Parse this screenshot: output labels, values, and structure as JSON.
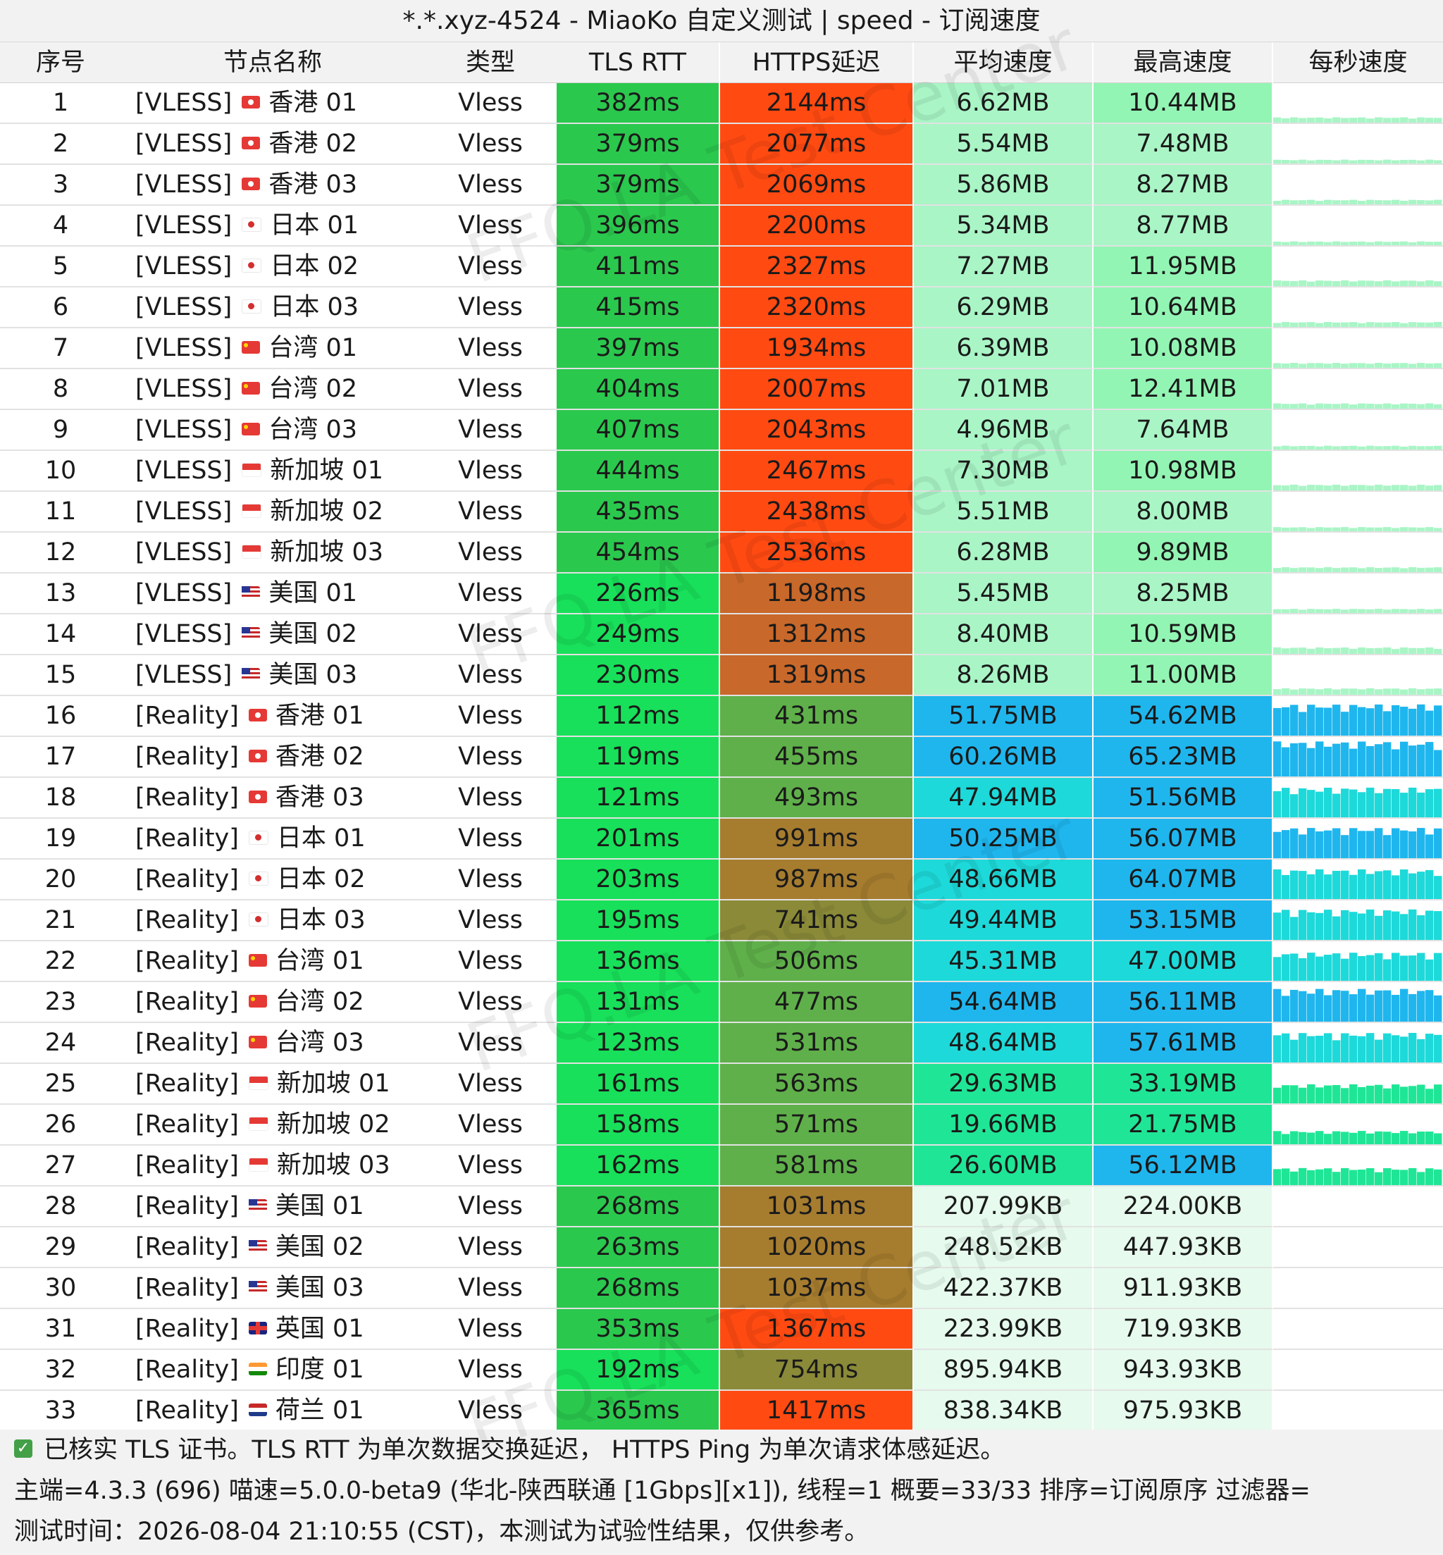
{
  "title": "*.*.xyz-4524 - MiaoKo 自定义测试 | speed - 订阅速度",
  "headers": [
    "序号",
    "节点名称",
    "类型",
    "TLS RTT",
    "HTTPS延迟",
    "平均速度",
    "最高速度",
    "每秒速度"
  ],
  "watermark": "FFQ.LA Test Center",
  "colors": {
    "tls_green": "#2bc84e",
    "tls_bright": "#18e05a",
    "https_red": "#ff4a12",
    "https_orange": "#c8682a",
    "https_brown": "#a67c2f",
    "https_olive": "#8a8a38",
    "https_green": "#5fb04a",
    "speed_mint": "#93f5b4",
    "speed_mint_light": "#a9f5c6",
    "speed_cyan": "#1ed9d9",
    "speed_blue": "#1fb6ee",
    "speed_green": "#1fe696",
    "speed_pale": "#e6faed"
  },
  "rows": [
    {
      "idx": "1",
      "proto": "[VLESS]",
      "flag": "hk",
      "name": "香港 01",
      "type": "Vless",
      "tls": "382ms",
      "https": "2144ms",
      "avg": "6.62MB",
      "max": "10.44MB",
      "level": 0.14
    },
    {
      "idx": "2",
      "proto": "[VLESS]",
      "flag": "hk",
      "name": "香港 02",
      "type": "Vless",
      "tls": "379ms",
      "https": "2077ms",
      "avg": "5.54MB",
      "max": "7.48MB",
      "level": 0.1
    },
    {
      "idx": "3",
      "proto": "[VLESS]",
      "flag": "hk",
      "name": "香港 03",
      "type": "Vless",
      "tls": "379ms",
      "https": "2069ms",
      "avg": "5.86MB",
      "max": "8.27MB",
      "level": 0.12
    },
    {
      "idx": "4",
      "proto": "[VLESS]",
      "flag": "jp",
      "name": "日本 01",
      "type": "Vless",
      "tls": "396ms",
      "https": "2200ms",
      "avg": "5.34MB",
      "max": "8.77MB",
      "level": 0.1
    },
    {
      "idx": "5",
      "proto": "[VLESS]",
      "flag": "jp",
      "name": "日本 02",
      "type": "Vless",
      "tls": "411ms",
      "https": "2327ms",
      "avg": "7.27MB",
      "max": "11.95MB",
      "level": 0.15
    },
    {
      "idx": "6",
      "proto": "[VLESS]",
      "flag": "jp",
      "name": "日本 03",
      "type": "Vless",
      "tls": "415ms",
      "https": "2320ms",
      "avg": "6.29MB",
      "max": "10.64MB",
      "level": 0.13
    },
    {
      "idx": "7",
      "proto": "[VLESS]",
      "flag": "cn",
      "name": "台湾 01",
      "type": "Vless",
      "tls": "397ms",
      "https": "1934ms",
      "avg": "6.39MB",
      "max": "10.08MB",
      "level": 0.13
    },
    {
      "idx": "8",
      "proto": "[VLESS]",
      "flag": "cn",
      "name": "台湾 02",
      "type": "Vless",
      "tls": "404ms",
      "https": "2007ms",
      "avg": "7.01MB",
      "max": "12.41MB",
      "level": 0.14
    },
    {
      "idx": "9",
      "proto": "[VLESS]",
      "flag": "cn",
      "name": "台湾 03",
      "type": "Vless",
      "tls": "407ms",
      "https": "2043ms",
      "avg": "4.96MB",
      "max": "7.64MB",
      "level": 0.1
    },
    {
      "idx": "10",
      "proto": "[VLESS]",
      "flag": "sg",
      "name": "新加坡 01",
      "type": "Vless",
      "tls": "444ms",
      "https": "2467ms",
      "avg": "7.30MB",
      "max": "10.98MB",
      "level": 0.15
    },
    {
      "idx": "11",
      "proto": "[VLESS]",
      "flag": "sg",
      "name": "新加坡 02",
      "type": "Vless",
      "tls": "435ms",
      "https": "2438ms",
      "avg": "5.51MB",
      "max": "8.00MB",
      "level": 0.11
    },
    {
      "idx": "12",
      "proto": "[VLESS]",
      "flag": "sg",
      "name": "新加坡 03",
      "type": "Vless",
      "tls": "454ms",
      "https": "2536ms",
      "avg": "6.28MB",
      "max": "9.89MB",
      "level": 0.13
    },
    {
      "idx": "13",
      "proto": "[VLESS]",
      "flag": "us",
      "name": "美国 01",
      "type": "Vless",
      "tls": "226ms",
      "https": "1198ms",
      "avg": "5.45MB",
      "max": "8.25MB",
      "level": 0.11
    },
    {
      "idx": "14",
      "proto": "[VLESS]",
      "flag": "us",
      "name": "美国 02",
      "type": "Vless",
      "tls": "249ms",
      "https": "1312ms",
      "avg": "8.40MB",
      "max": "10.59MB",
      "level": 0.17
    },
    {
      "idx": "15",
      "proto": "[VLESS]",
      "flag": "us",
      "name": "美国 03",
      "type": "Vless",
      "tls": "230ms",
      "https": "1319ms",
      "avg": "8.26MB",
      "max": "11.00MB",
      "level": 0.17
    },
    {
      "idx": "16",
      "proto": "[Reality]",
      "flag": "hk",
      "name": "香港 01",
      "type": "Vless",
      "tls": "112ms",
      "https": "431ms",
      "avg": "51.75MB",
      "max": "54.62MB",
      "level": 0.82
    },
    {
      "idx": "17",
      "proto": "[Reality]",
      "flag": "hk",
      "name": "香港 02",
      "type": "Vless",
      "tls": "119ms",
      "https": "455ms",
      "avg": "60.26MB",
      "max": "65.23MB",
      "level": 0.92
    },
    {
      "idx": "18",
      "proto": "[Reality]",
      "flag": "hk",
      "name": "香港 03",
      "type": "Vless",
      "tls": "121ms",
      "https": "493ms",
      "avg": "47.94MB",
      "max": "51.56MB",
      "level": 0.78
    },
    {
      "idx": "19",
      "proto": "[Reality]",
      "flag": "jp",
      "name": "日本 01",
      "type": "Vless",
      "tls": "201ms",
      "https": "991ms",
      "avg": "50.25MB",
      "max": "56.07MB",
      "level": 0.8
    },
    {
      "idx": "20",
      "proto": "[Reality]",
      "flag": "jp",
      "name": "日本 02",
      "type": "Vless",
      "tls": "203ms",
      "https": "987ms",
      "avg": "48.66MB",
      "max": "64.07MB",
      "level": 0.78
    },
    {
      "idx": "21",
      "proto": "[Reality]",
      "flag": "jp",
      "name": "日本 03",
      "type": "Vless",
      "tls": "195ms",
      "https": "741ms",
      "avg": "49.44MB",
      "max": "53.15MB",
      "level": 0.8
    },
    {
      "idx": "22",
      "proto": "[Reality]",
      "flag": "cn",
      "name": "台湾 01",
      "type": "Vless",
      "tls": "136ms",
      "https": "506ms",
      "avg": "45.31MB",
      "max": "47.00MB",
      "level": 0.74
    },
    {
      "idx": "23",
      "proto": "[Reality]",
      "flag": "cn",
      "name": "台湾 02",
      "type": "Vless",
      "tls": "131ms",
      "https": "477ms",
      "avg": "54.64MB",
      "max": "56.11MB",
      "level": 0.86
    },
    {
      "idx": "24",
      "proto": "[Reality]",
      "flag": "cn",
      "name": "台湾 03",
      "type": "Vless",
      "tls": "123ms",
      "https": "531ms",
      "avg": "48.64MB",
      "max": "57.61MB",
      "level": 0.78
    },
    {
      "idx": "25",
      "proto": "[Reality]",
      "flag": "sg",
      "name": "新加坡 01",
      "type": "Vless",
      "tls": "161ms",
      "https": "563ms",
      "avg": "29.63MB",
      "max": "33.19MB",
      "level": 0.5
    },
    {
      "idx": "26",
      "proto": "[Reality]",
      "flag": "sg",
      "name": "新加坡 02",
      "type": "Vless",
      "tls": "158ms",
      "https": "571ms",
      "avg": "19.66MB",
      "max": "21.75MB",
      "level": 0.35
    },
    {
      "idx": "27",
      "proto": "[Reality]",
      "flag": "sg",
      "name": "新加坡 03",
      "type": "Vless",
      "tls": "162ms",
      "https": "581ms",
      "avg": "26.60MB",
      "max": "56.12MB",
      "level": 0.45
    },
    {
      "idx": "28",
      "proto": "[Reality]",
      "flag": "us",
      "name": "美国 01",
      "type": "Vless",
      "tls": "268ms",
      "https": "1031ms",
      "avg": "207.99KB",
      "max": "224.00KB",
      "level": 0
    },
    {
      "idx": "29",
      "proto": "[Reality]",
      "flag": "us",
      "name": "美国 02",
      "type": "Vless",
      "tls": "263ms",
      "https": "1020ms",
      "avg": "248.52KB",
      "max": "447.93KB",
      "level": 0
    },
    {
      "idx": "30",
      "proto": "[Reality]",
      "flag": "us",
      "name": "美国 03",
      "type": "Vless",
      "tls": "268ms",
      "https": "1037ms",
      "avg": "422.37KB",
      "max": "911.93KB",
      "level": 0
    },
    {
      "idx": "31",
      "proto": "[Reality]",
      "flag": "gb",
      "name": "英国 01",
      "type": "Vless",
      "tls": "353ms",
      "https": "1367ms",
      "avg": "223.99KB",
      "max": "719.93KB",
      "level": 0
    },
    {
      "idx": "32",
      "proto": "[Reality]",
      "flag": "in",
      "name": "印度 01",
      "type": "Vless",
      "tls": "192ms",
      "https": "754ms",
      "avg": "895.94KB",
      "max": "943.93KB",
      "level": 0
    },
    {
      "idx": "33",
      "proto": "[Reality]",
      "flag": "nl",
      "name": "荷兰 01",
      "type": "Vless",
      "tls": "365ms",
      "https": "1417ms",
      "avg": "838.34KB",
      "max": "975.93KB",
      "level": 0
    }
  ],
  "footer": {
    "note": "已核实 TLS 证书。TLS RTT 为单次数据交换延迟， HTTPS Ping 为单次请求体感延迟。",
    "info": "主端=4.3.3 (696) 喵速=5.0.0-beta9 (华北-陕西联通 [1Gbps][x1]), 线程=1 概要=33/33 排序=订阅原序 过滤器=",
    "time": "测试时间：2026-08-04 21:10:55 (CST)，本测试为试验性结果，仅供参考。"
  }
}
